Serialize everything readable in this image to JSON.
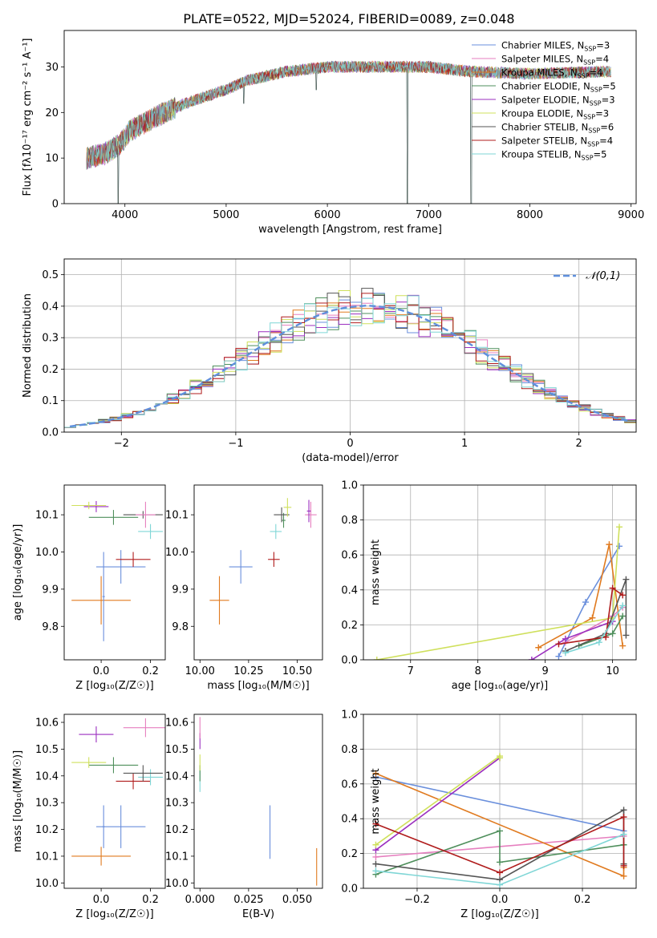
{
  "title": "PLATE=0522, MJD=52024, FIBERID=0089, z=0.048",
  "models": [
    {
      "name": "Chabrier MILES",
      "nssp": "3",
      "color": "#6a8fdc"
    },
    {
      "name": "Salpeter MILES",
      "nssp": "4",
      "color": "#e67fbf"
    },
    {
      "name": "Kroupa MILES",
      "nssp": "4",
      "color": "#e07a1f"
    },
    {
      "name": "Chabrier ELODIE",
      "nssp": "5",
      "color": "#4f8f5c"
    },
    {
      "name": "Salpeter ELODIE",
      "nssp": "3",
      "color": "#9b2fbf"
    },
    {
      "name": "Kroupa ELODIE",
      "nssp": "3",
      "color": "#cfe05c"
    },
    {
      "name": "Chabrier STELIB",
      "nssp": "6",
      "color": "#555555"
    },
    {
      "name": "Salpeter STELIB",
      "nssp": "4",
      "color": "#b01c1c"
    },
    {
      "name": "Kroupa STELIB",
      "nssp": "5",
      "color": "#7fd6d6"
    }
  ],
  "chart_data": [
    {
      "type": "line",
      "title": "PLATE=0522, MJD=52024, FIBERID=0089, z=0.048",
      "xlabel": "wavelength [Angstrom, rest frame]",
      "ylabel": "Flux [fλ10⁻¹⁷ erg cm⁻² s⁻¹ A⁻¹]",
      "xlim": [
        3400,
        9050
      ],
      "ylim": [
        0,
        38
      ],
      "xticks": [
        4000,
        5000,
        6000,
        7000,
        8000,
        9000
      ],
      "yticks": [
        0,
        10,
        20,
        30
      ],
      "spectrum_range": [
        3620,
        8800
      ],
      "continuum": [
        [
          3620,
          10
        ],
        [
          3800,
          11
        ],
        [
          3950,
          13
        ],
        [
          4050,
          16
        ],
        [
          4300,
          19
        ],
        [
          4600,
          22
        ],
        [
          5000,
          25
        ],
        [
          5200,
          27
        ],
        [
          5600,
          29
        ],
        [
          6000,
          30
        ],
        [
          6500,
          30
        ],
        [
          7000,
          30
        ],
        [
          7400,
          29
        ],
        [
          8000,
          28.5
        ],
        [
          8800,
          29
        ]
      ],
      "features": [
        [
          3933,
          0
        ],
        [
          5175,
          22
        ],
        [
          5890,
          25
        ],
        [
          6790,
          0
        ],
        [
          7420,
          0
        ]
      ],
      "legend": "upper right"
    },
    {
      "type": "histogram",
      "xlabel": "(data-model)/error",
      "ylabel": "Normed distribution",
      "xlim": [
        -2.5,
        2.5
      ],
      "ylim": [
        0,
        0.55
      ],
      "xticks": [
        -2,
        -1,
        0,
        1,
        2
      ],
      "yticks": [
        0.0,
        0.1,
        0.2,
        0.3,
        0.4,
        0.5
      ],
      "reference": "N(0,1)",
      "legend_label": "𝒩(0,1)",
      "bin_width": 0.1,
      "bins_from": -2.5,
      "reference_values": [
        0.018,
        0.023,
        0.028,
        0.035,
        0.043,
        0.052,
        0.063,
        0.075,
        0.09,
        0.106,
        0.124,
        0.143,
        0.164,
        0.186,
        0.209,
        0.232,
        0.256,
        0.279,
        0.301,
        0.323,
        0.342,
        0.36,
        0.375,
        0.387,
        0.395,
        0.399,
        0.402,
        0.399,
        0.395,
        0.387,
        0.375,
        0.36,
        0.342,
        0.323,
        0.301,
        0.279,
        0.256,
        0.232,
        0.209,
        0.186,
        0.164,
        0.143,
        0.124,
        0.106,
        0.09,
        0.075,
        0.063,
        0.052,
        0.043,
        0.035
      ],
      "grid": true,
      "legend": "upper right"
    },
    {
      "type": "scatter",
      "xlabel": "Z [log₁₀(Z/Z☉)]",
      "ylabel": "age  [log₁₀(age/yr)]",
      "xlim": [
        -0.15,
        0.26
      ],
      "ylim": [
        9.71,
        10.18
      ],
      "xticks": [
        0.0,
        0.2
      ],
      "yticks": [
        9.8,
        9.9,
        10.0,
        10.1
      ],
      "points": [
        {
          "model": 0,
          "x": 0.08,
          "y": 9.96,
          "xerr": 0.1,
          "yerr": 0.045
        },
        {
          "model": 2,
          "x": 0.0,
          "y": 9.87,
          "xerr": 0.12,
          "yerr": 0.065
        },
        {
          "model": 7,
          "x": 0.13,
          "y": 9.98,
          "xerr": 0.07,
          "yerr": 0.02
        },
        {
          "model": 8,
          "x": 0.2,
          "y": 10.055,
          "xerr": 0.05,
          "yerr": 0.02
        },
        {
          "model": 3,
          "x": 0.05,
          "y": 10.093,
          "xerr": 0.1,
          "yerr": 0.02
        },
        {
          "model": 6,
          "x": 0.17,
          "y": 10.1,
          "xerr": 0.08,
          "yerr": 0.01
        },
        {
          "model": 1,
          "x": 0.18,
          "y": 10.1,
          "xerr": 0.04,
          "yerr": 0.035
        },
        {
          "model": 4,
          "x": -0.02,
          "y": 10.122,
          "xerr": 0.05,
          "yerr": 0.015
        },
        {
          "model": 5,
          "x": -0.05,
          "y": 10.125,
          "xerr": 0.07,
          "yerr": 0.01
        },
        {
          "model": 0,
          "x": 0.01,
          "y": 9.88,
          "xerr": 0.005,
          "yerr": 0.12
        }
      ]
    },
    {
      "type": "scatter",
      "xlabel": "mass [log₁₀(M/M☉)]",
      "ylabel": "",
      "xlim": [
        9.97,
        10.63
      ],
      "ylim": [
        9.71,
        10.18
      ],
      "xticks": [
        10.0,
        10.25,
        10.5
      ],
      "xticklabels": [
        "10.00",
        "10.25",
        "10.50"
      ],
      "yticks": [
        9.8,
        9.9,
        10.0,
        10.1
      ],
      "points": [
        {
          "model": 2,
          "x": 10.1,
          "y": 9.87,
          "xerr": 0.05,
          "yerr": 0.065
        },
        {
          "model": 0,
          "x": 10.21,
          "y": 9.96,
          "xerr": 0.06,
          "yerr": 0.045
        },
        {
          "model": 7,
          "x": 10.38,
          "y": 9.98,
          "xerr": 0.03,
          "yerr": 0.02
        },
        {
          "model": 8,
          "x": 10.39,
          "y": 10.055,
          "xerr": 0.03,
          "yerr": 0.02
        },
        {
          "model": 3,
          "x": 10.43,
          "y": 10.085,
          "xerr": 0.01,
          "yerr": 0.02
        },
        {
          "model": 6,
          "x": 10.42,
          "y": 10.1,
          "xerr": 0.04,
          "yerr": 0.02
        },
        {
          "model": 1,
          "x": 10.57,
          "y": 10.1,
          "xerr": 0.03,
          "yerr": 0.035
        },
        {
          "model": 4,
          "x": 10.56,
          "y": 10.11,
          "xerr": 0.01,
          "yerr": 0.03
        },
        {
          "model": 5,
          "x": 10.45,
          "y": 10.12,
          "xerr": 0.02,
          "yerr": 0.025
        }
      ]
    },
    {
      "type": "line",
      "xlabel": "age  [log₁₀(age/yr)]",
      "ylabel": "mass weight",
      "xlim": [
        6.3,
        10.35
      ],
      "ylim": [
        0,
        1
      ],
      "xticks": [
        7,
        8,
        9,
        10
      ],
      "yticks": [
        0.0,
        0.2,
        0.4,
        0.6,
        0.8,
        1.0
      ],
      "grid": true,
      "series": [
        {
          "model": 0,
          "x": [
            9.2,
            9.6,
            10.1
          ],
          "y": [
            0.02,
            0.33,
            0.65
          ]
        },
        {
          "model": 1,
          "x": [
            9.3,
            10.0,
            10.15
          ],
          "y": [
            0.1,
            0.25,
            0.3
          ]
        },
        {
          "model": 2,
          "x": [
            8.9,
            9.7,
            9.95,
            10.15
          ],
          "y": [
            0.07,
            0.24,
            0.66,
            0.08
          ]
        },
        {
          "model": 3,
          "x": [
            9.5,
            10.0,
            10.15
          ],
          "y": [
            0.08,
            0.15,
            0.25
          ]
        },
        {
          "model": 4,
          "x": [
            8.8,
            9.3,
            10.0
          ],
          "y": [
            0.0,
            0.12,
            0.22
          ]
        },
        {
          "model": 5,
          "x": [
            6.5,
            10.0,
            10.1
          ],
          "y": [
            0.0,
            0.24,
            0.76
          ]
        },
        {
          "model": 6,
          "x": [
            9.3,
            9.9,
            10.2,
            10.2
          ],
          "y": [
            0.05,
            0.15,
            0.46,
            0.14
          ]
        },
        {
          "model": 7,
          "x": [
            9.2,
            9.9,
            10.0,
            10.15
          ],
          "y": [
            0.09,
            0.13,
            0.41,
            0.37
          ]
        },
        {
          "model": 8,
          "x": [
            9.3,
            9.8,
            10.15
          ],
          "y": [
            0.04,
            0.1,
            0.31
          ]
        }
      ]
    },
    {
      "type": "scatter",
      "xlabel": "Z [log₁₀(Z/Z☉)]",
      "ylabel": "mass [log₁₀(M/M☉)]",
      "xlim": [
        -0.15,
        0.26
      ],
      "ylim": [
        9.98,
        10.63
      ],
      "xticks": [
        0.0,
        0.2
      ],
      "yticks": [
        10.0,
        10.1,
        10.2,
        10.3,
        10.4,
        10.5,
        10.6
      ],
      "points": [
        {
          "model": 2,
          "x": 0.0,
          "y": 10.1,
          "xerr": 0.12,
          "yerr": 0.035
        },
        {
          "model": 0,
          "x": 0.08,
          "y": 10.21,
          "xerr": 0.1,
          "yerr": 0.08
        },
        {
          "model": 7,
          "x": 0.13,
          "y": 10.38,
          "xerr": 0.07,
          "yerr": 0.03
        },
        {
          "model": 8,
          "x": 0.2,
          "y": 10.395,
          "xerr": 0.05,
          "yerr": 0.03
        },
        {
          "model": 3,
          "x": 0.05,
          "y": 10.44,
          "xerr": 0.1,
          "yerr": 0.03
        },
        {
          "model": 6,
          "x": 0.17,
          "y": 10.41,
          "xerr": 0.08,
          "yerr": 0.03
        },
        {
          "model": 1,
          "x": 0.18,
          "y": 10.58,
          "xerr": 0.09,
          "yerr": 0.035
        },
        {
          "model": 4,
          "x": -0.02,
          "y": 10.555,
          "xerr": 0.07,
          "yerr": 0.03
        },
        {
          "model": 5,
          "x": -0.05,
          "y": 10.45,
          "xerr": 0.07,
          "yerr": 0.02
        },
        {
          "model": 0,
          "x": 0.01,
          "y": 10.21,
          "xerr": 0.005,
          "yerr": 0.08
        }
      ]
    },
    {
      "type": "scatter",
      "xlabel": "E(B-V)",
      "ylabel": "",
      "xlim": [
        -0.003,
        0.063
      ],
      "ylim": [
        9.98,
        10.63
      ],
      "xticks": [
        0.0,
        0.025,
        0.05
      ],
      "xticklabels": [
        "0.000",
        "0.025",
        "0.050"
      ],
      "yticks": [
        10.0,
        10.1,
        10.2,
        10.3,
        10.4,
        10.5,
        10.6
      ],
      "points": [
        {
          "model": 2,
          "x": 0.06,
          "y": 10.06,
          "xerr": 0,
          "yerr": 0.07
        },
        {
          "model": 0,
          "x": 0.036,
          "y": 10.19,
          "xerr": 0,
          "yerr": 0.1
        },
        {
          "model": 8,
          "x": 0.0,
          "y": 10.38,
          "xerr": 0,
          "yerr": 0.04
        },
        {
          "model": 3,
          "x": 0.0,
          "y": 10.41,
          "xerr": 0,
          "yerr": 0.03
        },
        {
          "model": 5,
          "x": 0.0,
          "y": 10.45,
          "xerr": 0,
          "yerr": 0.03
        },
        {
          "model": 4,
          "x": 0.0,
          "y": 10.53,
          "xerr": 0,
          "yerr": 0.03
        },
        {
          "model": 1,
          "x": 0.0,
          "y": 10.58,
          "xerr": 0,
          "yerr": 0.04
        }
      ]
    },
    {
      "type": "line",
      "xlabel": "Z [log₁₀(Z/Z☉)]",
      "ylabel": "mass weight",
      "xlim": [
        -0.33,
        0.33
      ],
      "ylim": [
        0,
        1
      ],
      "xticks": [
        -0.2,
        0.0,
        0.2
      ],
      "yticks": [
        0.0,
        0.2,
        0.4,
        0.6,
        0.8,
        1.0
      ],
      "grid": true,
      "series": [
        {
          "model": 0,
          "x": [
            -0.3,
            0.3
          ],
          "y": [
            0.64,
            0.33
          ]
        },
        {
          "model": 1,
          "x": [
            -0.3,
            0.3
          ],
          "y": [
            0.18,
            0.3
          ]
        },
        {
          "model": 2,
          "x": [
            -0.3,
            0.3,
            0.3
          ],
          "y": [
            0.66,
            0.07,
            0.12
          ]
        },
        {
          "model": 3,
          "x": [
            -0.3,
            0.0,
            0.0,
            0.3
          ],
          "y": [
            0.08,
            0.33,
            0.15,
            0.25
          ]
        },
        {
          "model": 4,
          "x": [
            -0.3,
            0.0
          ],
          "y": [
            0.22,
            0.75
          ]
        },
        {
          "model": 5,
          "x": [
            -0.3,
            0.0,
            0.0
          ],
          "y": [
            0.25,
            0.76,
            0.75
          ]
        },
        {
          "model": 6,
          "x": [
            -0.3,
            0.0,
            0.3,
            0.3
          ],
          "y": [
            0.14,
            0.05,
            0.45,
            0.14
          ]
        },
        {
          "model": 7,
          "x": [
            -0.3,
            0.0,
            0.3,
            0.3
          ],
          "y": [
            0.37,
            0.09,
            0.41,
            0.13
          ]
        },
        {
          "model": 8,
          "x": [
            -0.3,
            0.0,
            0.3
          ],
          "y": [
            0.1,
            0.02,
            0.31
          ]
        }
      ]
    }
  ]
}
